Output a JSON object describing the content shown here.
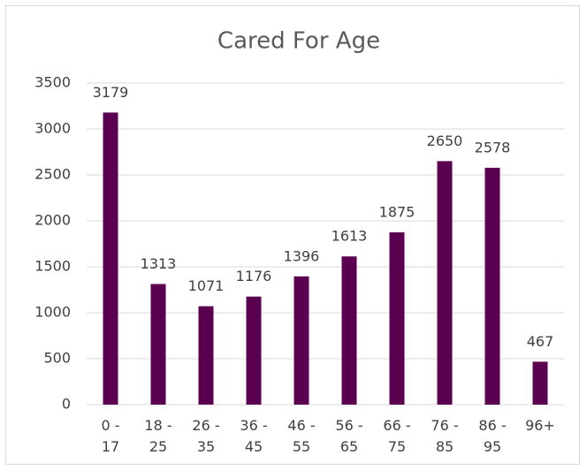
{
  "chart_data": {
    "type": "bar",
    "title": "Cared For Age",
    "categories": [
      "0 - 17",
      "18 - 25",
      "26 - 35",
      "36 - 45",
      "46 - 55",
      "56 - 65",
      "66 - 75",
      "76 - 85",
      "86 - 95",
      "96+"
    ],
    "values": [
      3179,
      1313,
      1071,
      1176,
      1396,
      1613,
      1875,
      2650,
      2578,
      467
    ],
    "color": "#5b0050",
    "ylim": [
      0,
      3500
    ],
    "yticks": [
      0,
      500,
      1000,
      1500,
      2000,
      2500,
      3000,
      3500
    ],
    "grid": true
  }
}
